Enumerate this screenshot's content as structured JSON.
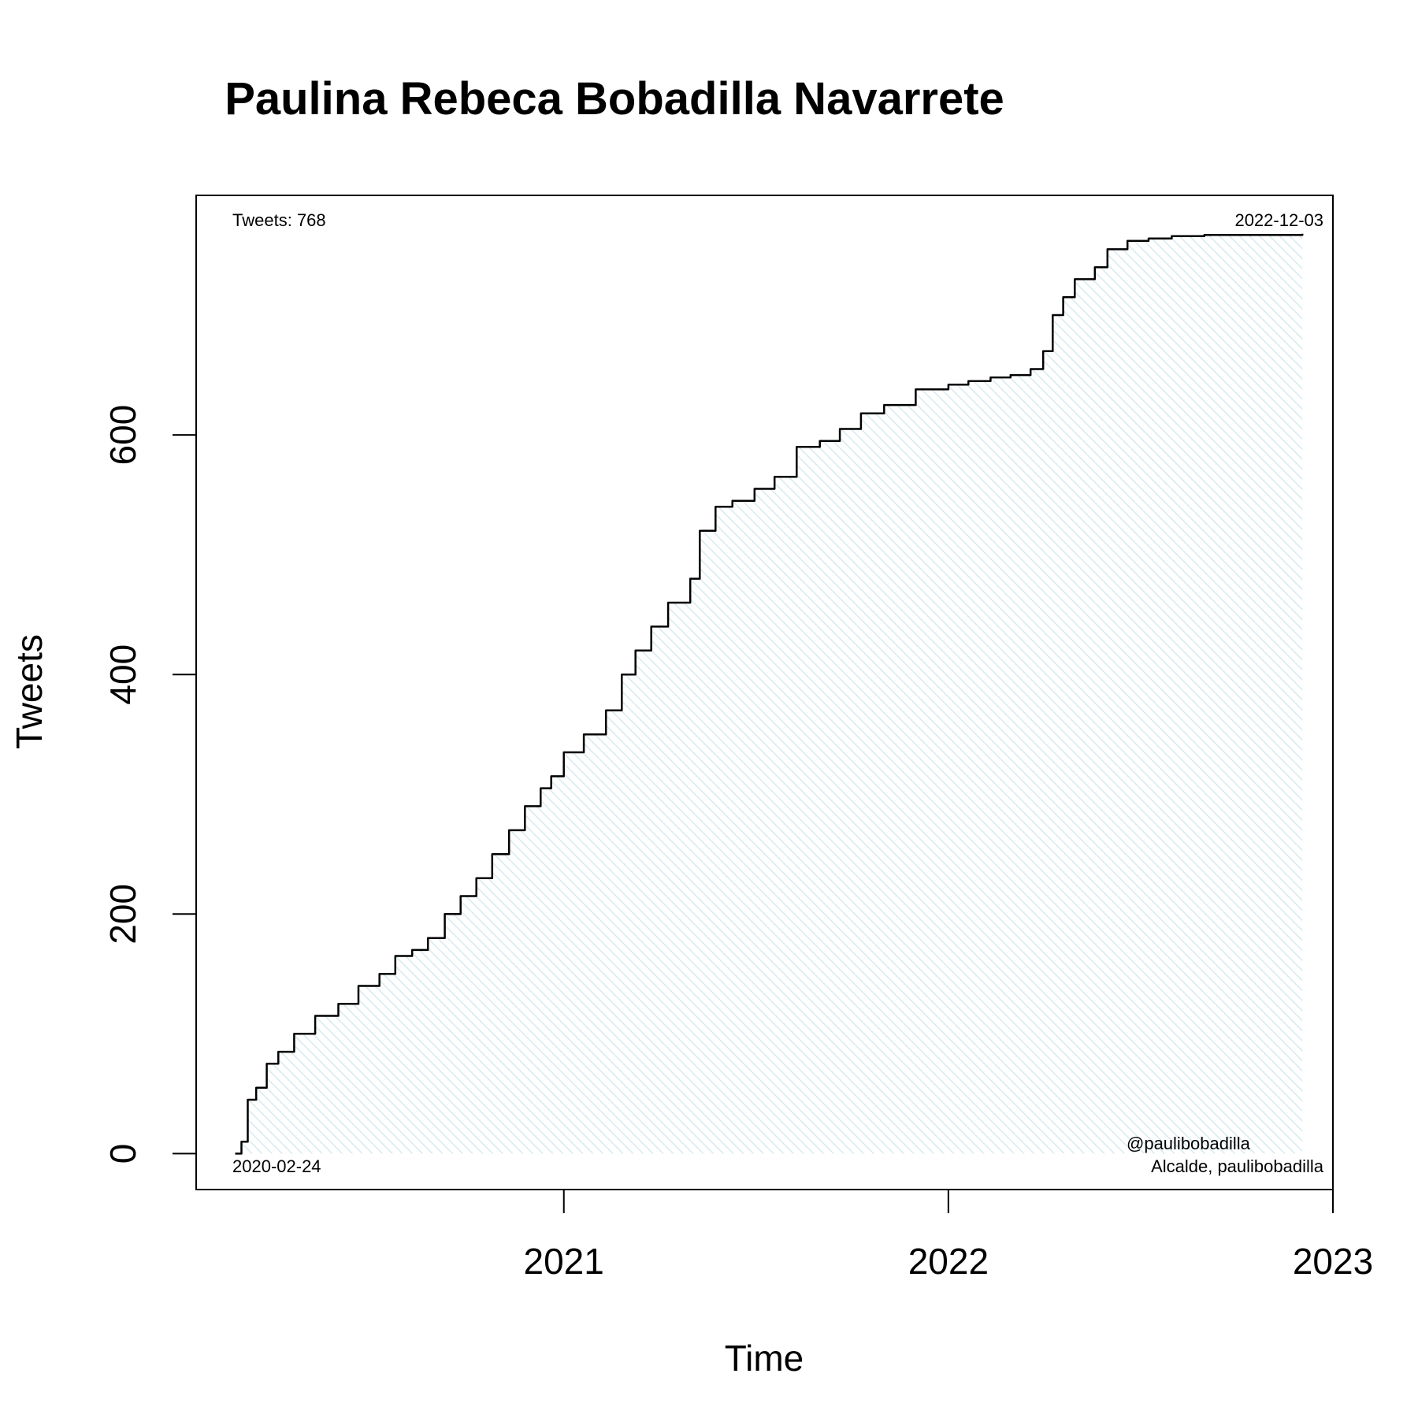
{
  "chart_data": {
    "type": "area",
    "title": "Paulina Rebeca Bobadilla Navarrete",
    "xlabel": "Time",
    "ylabel": "Tweets",
    "x_ticks": [
      "2021",
      "2022",
      "2023"
    ],
    "y_ticks": [
      "0",
      "200",
      "400",
      "600"
    ],
    "xlim": [
      "2020-01-18",
      "2023-01-01"
    ],
    "ylim": [
      -30,
      800
    ],
    "grid": false,
    "annotations": {
      "total": "Tweets: 768",
      "end_date": "2022-12-03",
      "start_date": "2020-02-24",
      "handle": "@paulibobadilla",
      "description": "Alcalde, paulibobadilla"
    },
    "colors": {
      "line": "#000000",
      "fill_hatch": "#d6eaf0"
    },
    "series": [
      {
        "x": [
          "2020-02-24",
          "2020-03-01",
          "2020-03-07",
          "2020-03-15",
          "2020-03-25",
          "2020-04-05",
          "2020-04-20",
          "2020-05-10",
          "2020-06-01",
          "2020-06-20",
          "2020-07-10",
          "2020-07-25",
          "2020-08-10",
          "2020-08-25",
          "2020-09-10",
          "2020-09-25",
          "2020-10-10",
          "2020-10-25",
          "2020-11-10",
          "2020-11-25",
          "2020-12-10",
          "2020-12-20",
          "2021-01-01",
          "2021-01-20",
          "2021-02-10",
          "2021-02-25",
          "2021-03-10",
          "2021-03-25",
          "2021-04-10",
          "2021-05-01",
          "2021-05-10",
          "2021-05-25",
          "2021-06-10",
          "2021-07-01",
          "2021-07-20",
          "2021-08-10",
          "2021-08-15",
          "2021-09-01",
          "2021-09-20",
          "2021-10-10",
          "2021-11-01",
          "2021-12-01",
          "2022-01-01",
          "2022-01-20",
          "2022-02-10",
          "2022-03-01",
          "2022-03-20",
          "2022-04-01",
          "2022-04-10",
          "2022-04-20",
          "2022-05-01",
          "2022-05-20",
          "2022-06-01",
          "2022-06-20",
          "2022-07-10",
          "2022-08-01",
          "2022-09-01",
          "2022-10-01",
          "2022-11-01",
          "2022-11-20",
          "2022-12-03"
        ],
        "y": [
          0,
          10,
          45,
          55,
          75,
          85,
          100,
          115,
          125,
          140,
          150,
          165,
          170,
          180,
          200,
          215,
          230,
          250,
          270,
          290,
          305,
          315,
          335,
          350,
          370,
          400,
          420,
          440,
          460,
          480,
          520,
          540,
          545,
          555,
          565,
          590,
          590,
          595,
          605,
          618,
          625,
          638,
          642,
          645,
          648,
          650,
          655,
          670,
          700,
          715,
          730,
          740,
          755,
          762,
          764,
          766,
          767,
          767,
          767,
          767,
          768
        ]
      }
    ]
  }
}
